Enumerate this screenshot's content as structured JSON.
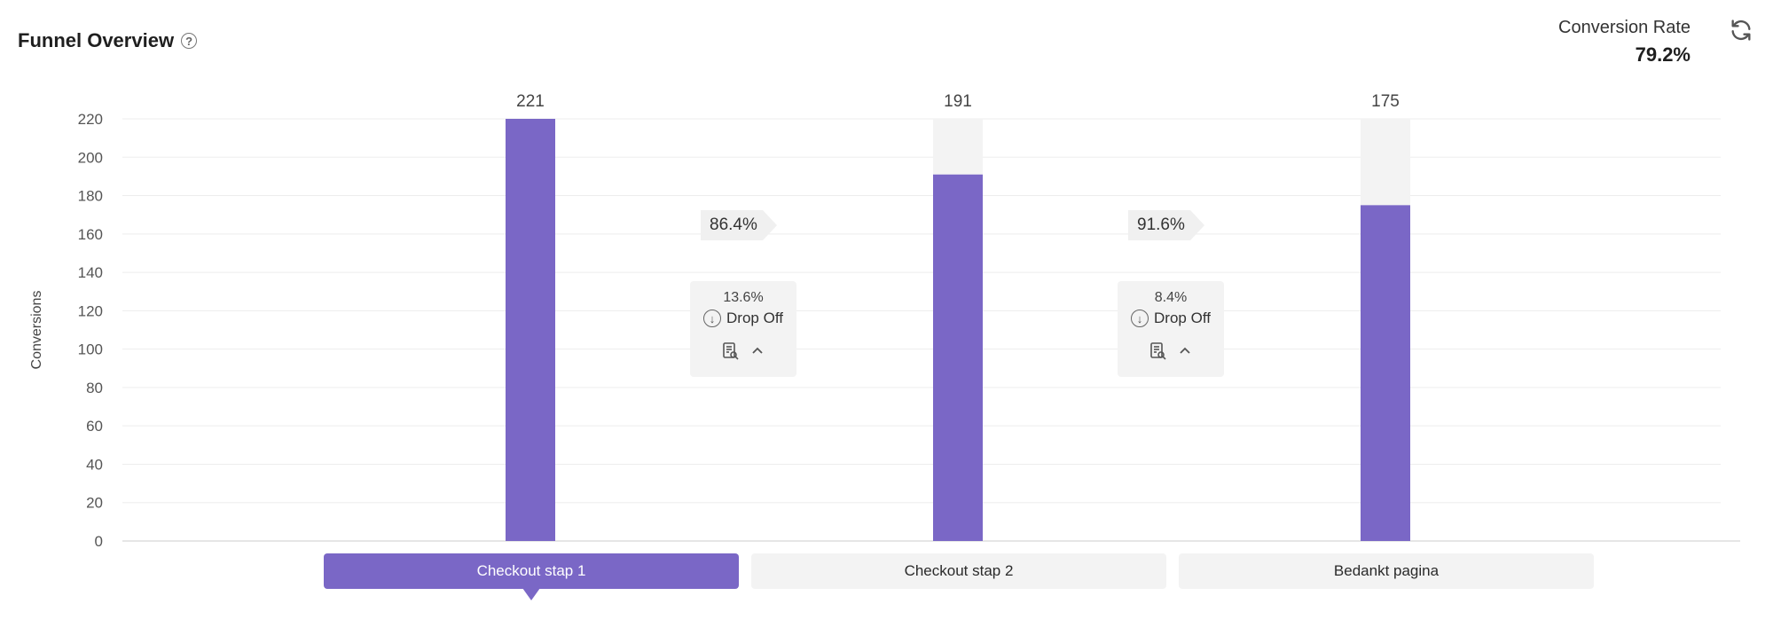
{
  "header": {
    "title": "Funnel Overview",
    "help_icon": "question-circle-icon"
  },
  "summary": {
    "label": "Conversion Rate",
    "value": "79.2%",
    "refresh_icon": "refresh-icon"
  },
  "chart_data": {
    "type": "bar",
    "ylabel": "Conversions",
    "ylim": [
      0,
      220
    ],
    "yticks": [
      0,
      20,
      40,
      60,
      80,
      100,
      120,
      140,
      160,
      180,
      200,
      220
    ],
    "categories": [
      "Checkout stap 1",
      "Checkout stap 2",
      "Bedankt pagina"
    ],
    "values": [
      221,
      191,
      175
    ],
    "value_labels": [
      "221",
      "191",
      "175"
    ],
    "bar_color": "#7a67c6",
    "remainder_color": "#f3f3f3",
    "grid": true,
    "active_step": 0,
    "transitions": [
      {
        "rate": "86.4%",
        "dropoff": "13.6%",
        "dropoff_label": "Drop Off"
      },
      {
        "rate": "91.6%",
        "dropoff": "8.4%",
        "dropoff_label": "Drop Off"
      }
    ]
  }
}
